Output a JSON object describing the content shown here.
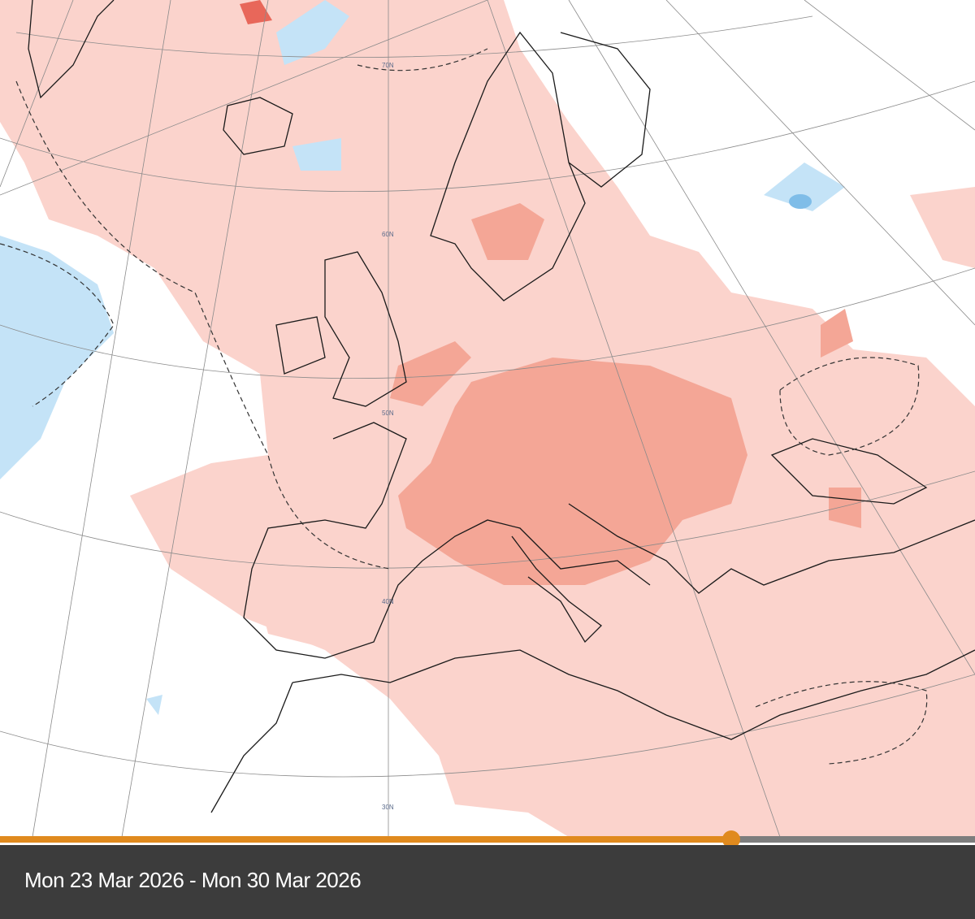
{
  "map": {
    "latitude_labels": [
      "70N",
      "60N",
      "50N",
      "40N",
      "30N"
    ],
    "colors": {
      "background": "#ffffff",
      "warm_anomaly": "#fbd3cc",
      "strong_warm_anomaly": "#f4a696",
      "very_warm_anomaly": "#e8675a",
      "cold_anomaly": "#c4e3f7",
      "strong_cold_anomaly": "#7fbde8"
    }
  },
  "timeline": {
    "date_range": "Mon 23 Mar 2026 - Mon 30 Mar 2026",
    "progress": 0.75,
    "colors": {
      "played": "#e08a1e",
      "remaining": "#7d7d7d",
      "footer": "#3c3c3c"
    }
  }
}
